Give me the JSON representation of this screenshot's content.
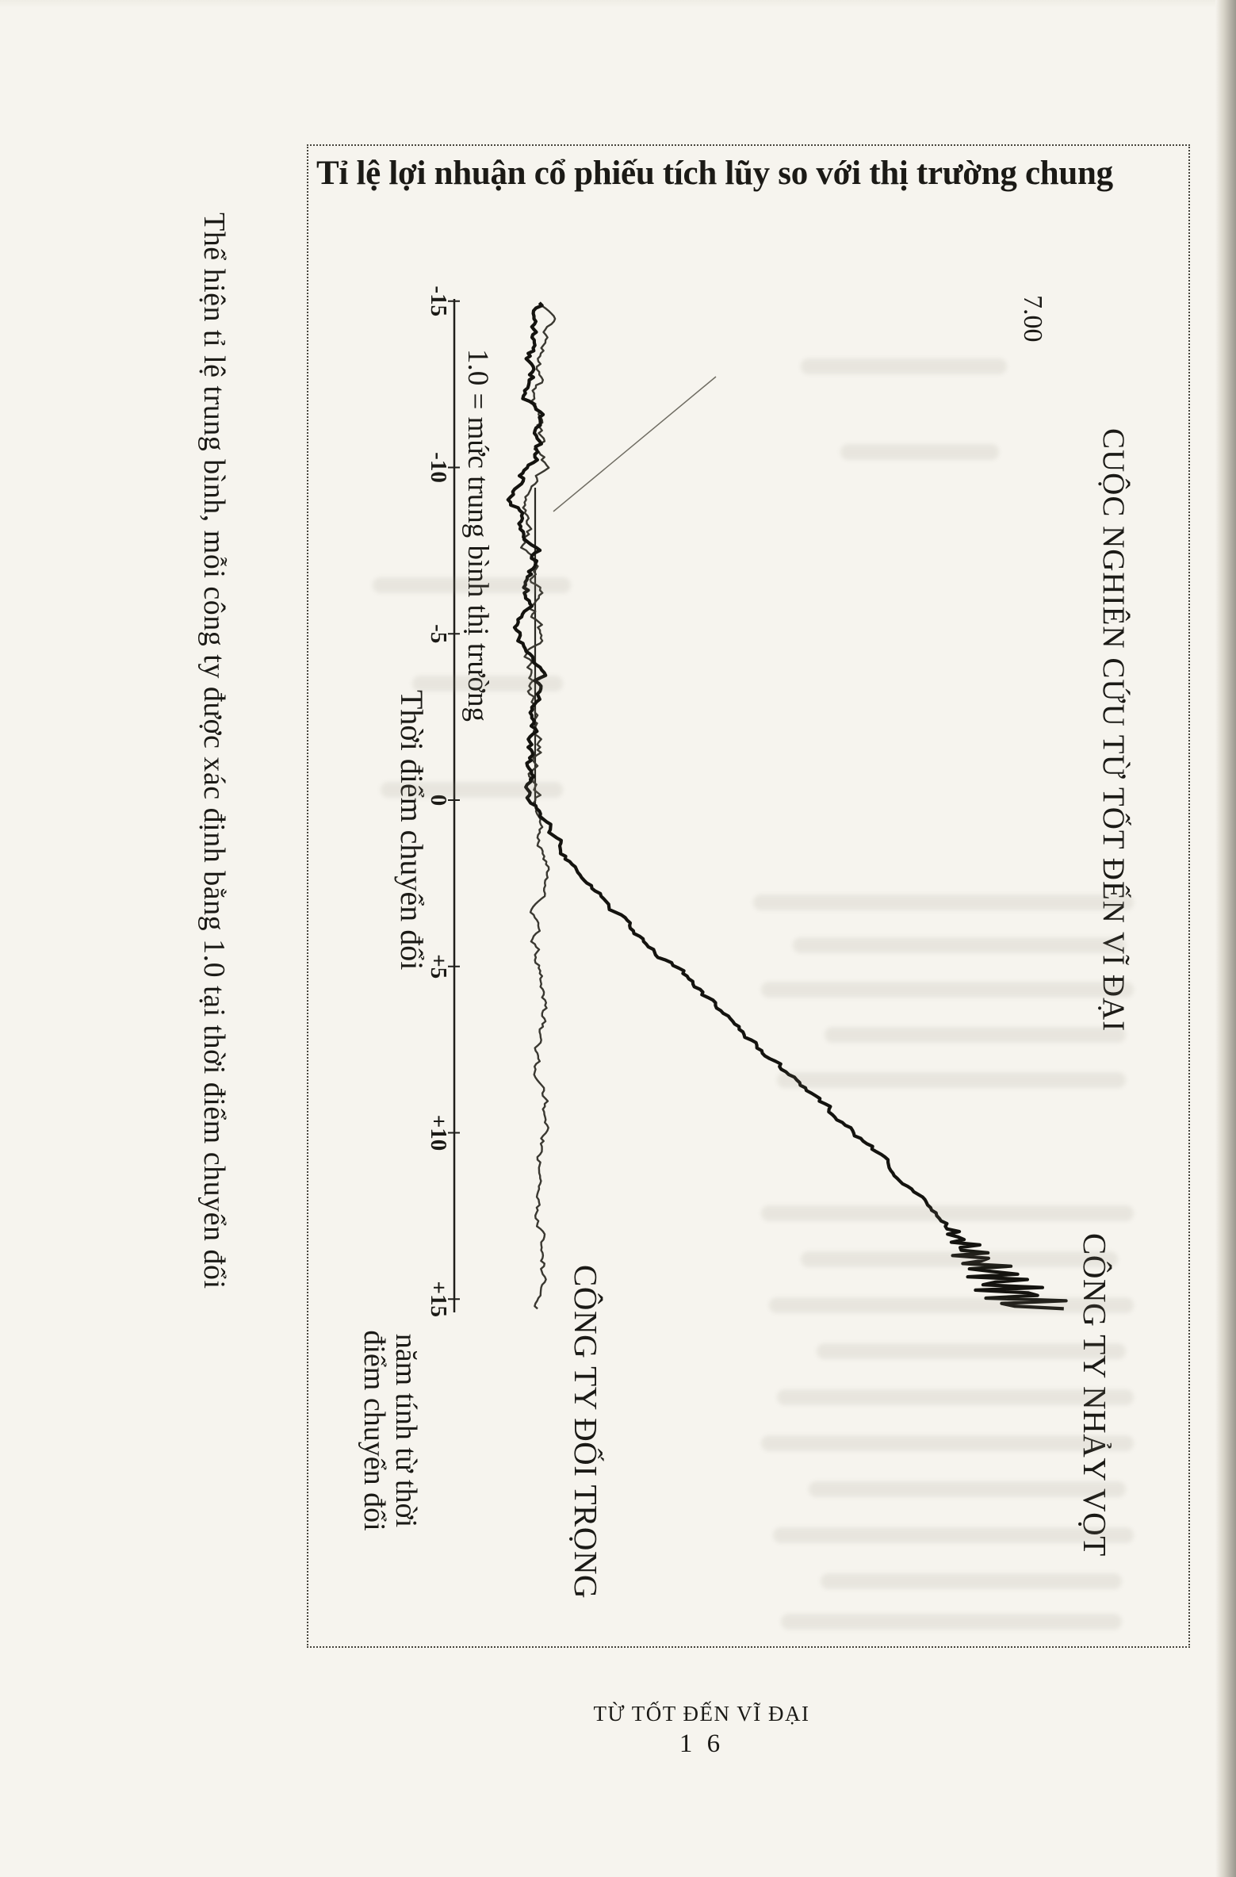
{
  "page": {
    "caption_left": "Thể hiện tỉ lệ trung bình, mỗi công ty được xác định bằng 1.0 tại thời điểm chuyển đổi",
    "footer_title": "TỪ TỐT ĐẾN VĨ ĐẠI",
    "footer_page": "1 6"
  },
  "chart_data": {
    "type": "line",
    "title": "Tỉ lệ lợi nhuận cổ phiếu tích lũy so với thị trường chung",
    "study_label": "CUỘC NGHIÊN CỨU TỪ TỐT ĐẾN VĨ ĐẠI",
    "y_max_label": "7.00",
    "baseline_label": "1.0 = mức trung bình thị trường",
    "transition_label": "Thời điểm chuyển đổi",
    "xlabel_line1": "năm tính từ thời",
    "xlabel_line2": "điểm chuyển đổi",
    "x_ticks": [
      "-15",
      "-10",
      "-5",
      "0",
      "+5",
      "+10",
      "+15"
    ],
    "x_range": [
      -15,
      15
    ],
    "baseline_value": 1.0,
    "y_top_value": 7.0,
    "grid": false,
    "legend_position": "inline-labels",
    "orientation": "rotated-90deg-clockwise-on-page",
    "series": [
      {
        "name": "CÔNG TY NHẢY VỌT",
        "x": [
          -15,
          -14,
          -13,
          -12,
          -11,
          -10,
          -9,
          -8,
          -7,
          -6,
          -5,
          -4,
          -3,
          -2,
          -1,
          0,
          1,
          2,
          3,
          4,
          5,
          6,
          7,
          8,
          9,
          10,
          11,
          12,
          13,
          14,
          15
        ],
        "values": [
          1.0,
          0.96,
          0.9,
          0.97,
          1.04,
          0.92,
          0.82,
          0.93,
          1.0,
          0.94,
          0.86,
          0.96,
          1.02,
          0.98,
          0.96,
          1.0,
          1.22,
          1.5,
          1.85,
          2.25,
          2.7,
          3.1,
          3.5,
          3.95,
          4.4,
          4.85,
          5.3,
          5.7,
          6.05,
          6.45,
          6.9
        ]
      },
      {
        "name": "CÔNG TY ĐỐI TRỌNG",
        "x": [
          -15,
          -14,
          -13,
          -12,
          -11,
          -10,
          -9,
          -8,
          -7,
          -6,
          -5,
          -4,
          -3,
          -2,
          -1,
          0,
          1,
          2,
          3,
          4,
          5,
          6,
          7,
          8,
          9,
          10,
          11,
          12,
          13,
          14,
          15
        ],
        "values": [
          1.06,
          1.12,
          1.0,
          0.93,
          1.0,
          1.08,
          0.97,
          0.86,
          0.97,
          1.05,
          1.0,
          0.94,
          1.0,
          1.06,
          1.0,
          1.0,
          1.06,
          1.12,
          1.04,
          0.99,
          1.06,
          1.12,
          1.06,
          1.0,
          1.08,
          1.14,
          1.06,
          1.0,
          1.06,
          1.1,
          1.04
        ]
      }
    ],
    "ink_color": "#1b1a16",
    "paper_color": "#f6f4ee"
  }
}
